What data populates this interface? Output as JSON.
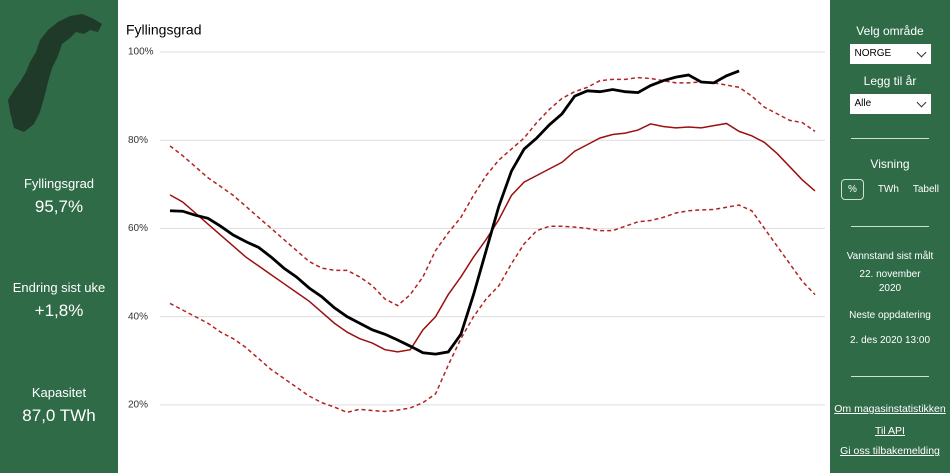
{
  "sidebar": {
    "stats": [
      {
        "label": "Fyllingsgrad",
        "value": "95,7%"
      },
      {
        "label": "Endring sist uke",
        "value": "+1,8%"
      },
      {
        "label": "Kapasitet",
        "value": "87,0 TWh"
      }
    ]
  },
  "controls": {
    "area_label": "Velg område",
    "area_value": "NORGE",
    "year_label": "Legg til år",
    "year_value": "Alle",
    "view_label": "Visning",
    "view_options": [
      "%",
      "TWh",
      "Tabell"
    ],
    "measured_label": "Vannstand sist målt",
    "measured_value": "22. november 2020",
    "update_label": "Neste oppdatering",
    "update_value": "2. des 2020 13:00",
    "links": [
      "Om magasinstatistikken",
      "Til API",
      "Gi oss tilbakemelding"
    ]
  },
  "chart_data": {
    "type": "line",
    "title": "Fyllingsgrad",
    "ylim": [
      5,
      100
    ],
    "yticks": [
      {
        "value": 20,
        "label": "20%"
      },
      {
        "value": 40,
        "label": "40%"
      },
      {
        "value": 60,
        "label": "60%"
      },
      {
        "value": 80,
        "label": "80%"
      },
      {
        "value": 100,
        "label": "100%"
      }
    ],
    "grid": true,
    "series": [
      {
        "color": "#b22222",
        "dashed": true,
        "values": [
          78.7,
          76.5,
          74,
          71.5,
          69.5,
          67.5,
          65,
          62.5,
          60,
          57.5,
          55,
          52.5,
          51,
          50.5,
          50.5,
          49,
          47,
          44,
          42.5,
          45,
          49,
          55,
          59,
          62.5,
          67.5,
          72,
          75.5,
          78,
          80.5,
          84,
          87,
          89.5,
          91,
          92,
          93.5,
          93.8,
          93.8,
          94.2,
          94,
          93.5,
          93,
          93,
          93.2,
          93,
          92.5,
          92,
          90,
          87.5,
          86,
          84.5,
          84,
          82
        ]
      },
      {
        "color": "#b22222",
        "dashed": true,
        "values": [
          43,
          41.5,
          40,
          38.5,
          36.5,
          35,
          33,
          30.5,
          28,
          26,
          24,
          22,
          20.5,
          19.5,
          18.3,
          19,
          18.7,
          18.5,
          18.8,
          19.3,
          20.5,
          22.5,
          29,
          35,
          40,
          44,
          47,
          52,
          56.5,
          59.5,
          60.5,
          60.5,
          60.3,
          60,
          59.5,
          59.5,
          60.5,
          61.5,
          61.8,
          62.5,
          63.5,
          64,
          64.2,
          64.3,
          64.8,
          65.3,
          64,
          60,
          56,
          52,
          48,
          45
        ]
      },
      {
        "color": "#9b1010",
        "dashed": false,
        "values": [
          67.6,
          66,
          63.5,
          61,
          58.5,
          56,
          53.5,
          51.5,
          49.5,
          47.5,
          45.5,
          43.5,
          41,
          38.5,
          36.5,
          35,
          34,
          32.5,
          32,
          32.5,
          37,
          40,
          45,
          49,
          53.5,
          57.5,
          62,
          67.5,
          70.5,
          72,
          73.5,
          75,
          77.5,
          79,
          80.5,
          81.3,
          81.6,
          82.3,
          83.7,
          83.1,
          82.8,
          83,
          82.8,
          83.3,
          83.8,
          82,
          81,
          79.5,
          77,
          74,
          71,
          68.5
        ]
      },
      {
        "color": "#000000",
        "dashed": false,
        "values": [
          64,
          63.9,
          63,
          62.3,
          60.5,
          58.5,
          57,
          55.7,
          53.5,
          51,
          49,
          46.5,
          44.5,
          42,
          40,
          38.5,
          37,
          36,
          34.7,
          33.3,
          31.8,
          31.5,
          32,
          36,
          45,
          55,
          65,
          73,
          78,
          80.5,
          83.5,
          86,
          90,
          91.2,
          91,
          91.5,
          91,
          90.8,
          92.4,
          93.5,
          94.3,
          94.8,
          93.2,
          93,
          94.6,
          95.7,
          null,
          null,
          null,
          null,
          null,
          null
        ]
      }
    ]
  }
}
